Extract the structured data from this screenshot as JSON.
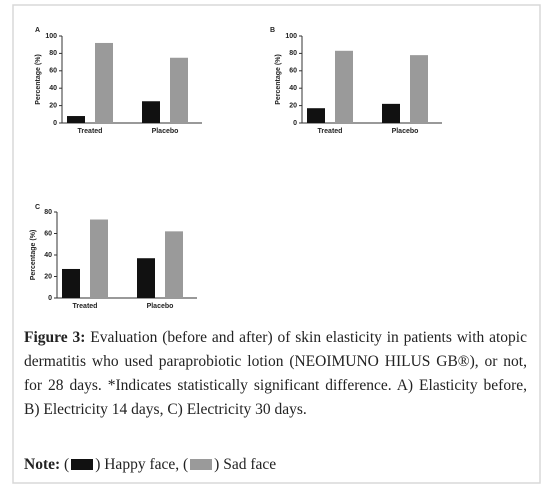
{
  "chart_data": [
    {
      "type": "bar",
      "label": "A",
      "y_label": "Percentage (%)",
      "categories": [
        "Treated",
        "Placebo"
      ],
      "series": [
        {
          "color": "#111111",
          "values": [
            8,
            25
          ]
        },
        {
          "color": "#9a9a9a",
          "values": [
            92,
            75
          ]
        }
      ],
      "ylim": [
        0,
        100
      ],
      "yticks": [
        0,
        20,
        40,
        60,
        80,
        100
      ]
    },
    {
      "type": "bar",
      "label": "B",
      "y_label": "Percentage (%)",
      "categories": [
        "Treated",
        "Placebo"
      ],
      "series": [
        {
          "color": "#111111",
          "values": [
            17,
            22
          ]
        },
        {
          "color": "#9a9a9a",
          "values": [
            83,
            78
          ]
        }
      ],
      "ylim": [
        0,
        100
      ],
      "yticks": [
        0,
        20,
        40,
        60,
        80,
        100
      ]
    },
    {
      "type": "bar",
      "label": "C",
      "y_label": "Percentage (%)",
      "categories": [
        "Treated",
        "Placebo"
      ],
      "series": [
        {
          "color": "#111111",
          "values": [
            27,
            37
          ]
        },
        {
          "color": "#9a9a9a",
          "values": [
            73,
            62
          ]
        }
      ],
      "ylim": [
        0,
        80
      ],
      "yticks": [
        0,
        20,
        40,
        60,
        80
      ]
    }
  ],
  "caption": {
    "label": "Figure 3:",
    "text": "Evaluation (before and after) of skin elasticity in patients with atopic dermatitis who used paraprobiotic lotion (NEOIMUNO HILUS GB®), or not, for 28 days. *Indicates statistically significant difference. A) Elasticity before, B) Electricity 14 days, C) Electricity 30 days."
  },
  "note": {
    "label": "Note:",
    "parts": [
      "(",
      ") Happy face, (",
      ") Sad face"
    ]
  }
}
